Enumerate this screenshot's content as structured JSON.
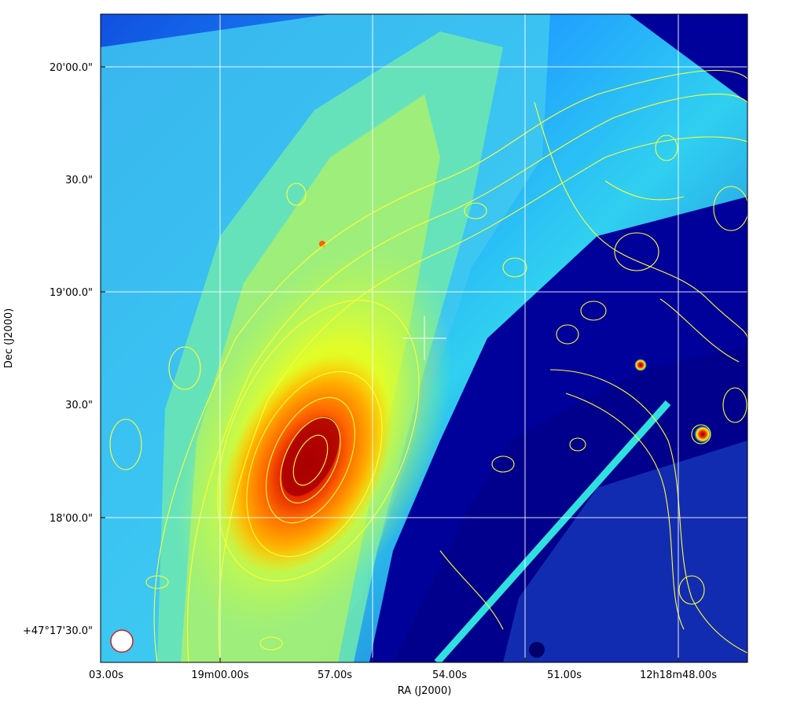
{
  "chart_data": {
    "type": "image",
    "xlabel": "RA (J2000)",
    "ylabel": "Dec (J2000)",
    "x_ticks": [
      "03.00s",
      "19m00.00s",
      "57.00s",
      "54.00s",
      "51.00s",
      "12h18m48.00s"
    ],
    "y_ticks": [
      "20'00.0\"",
      "30.0\"",
      "19'00.0\"",
      "30.0\"",
      "18'00.0\"",
      "+47°17'30.0\""
    ],
    "grid": true,
    "colormap": "jet",
    "contour_color": "#ffff33",
    "beam_color": "#cc2222"
  }
}
